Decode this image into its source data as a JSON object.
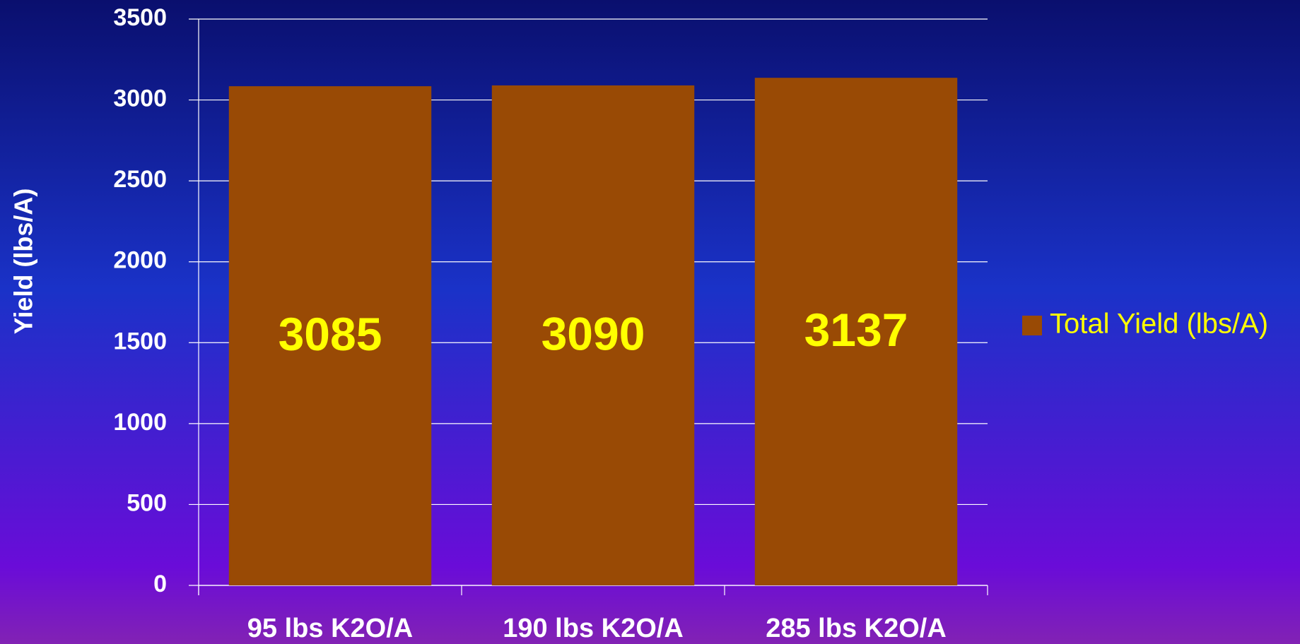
{
  "chart_data": {
    "type": "bar",
    "y_label": "Yield (lbs/A)",
    "categories": [
      "95 lbs K2O/A",
      "190 lbs K2O/A",
      "285 lbs K2O/A"
    ],
    "series": [
      {
        "name": "Total Yield (lbs/A)",
        "color": "#994a05",
        "values": [
          3085,
          3090,
          3137
        ]
      }
    ],
    "ylim": [
      0,
      3500
    ],
    "yticks": [
      0,
      500,
      1000,
      1500,
      2000,
      2500,
      3000,
      3500
    ],
    "grid": true,
    "legend": "right",
    "value_label_color": "#ffff00"
  }
}
